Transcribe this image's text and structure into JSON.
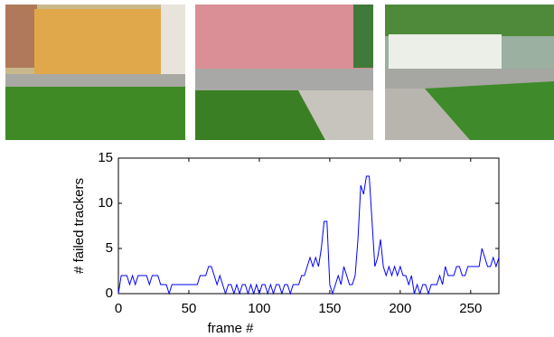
{
  "chart_data": {
    "type": "line",
    "xlabel": "frame #",
    "ylabel": "# failed trackers",
    "xlim": [
      0,
      270
    ],
    "ylim": [
      0,
      15
    ],
    "xticks": [
      0,
      50,
      100,
      150,
      200,
      250
    ],
    "yticks": [
      0,
      5,
      10,
      15
    ],
    "x": [
      0,
      2,
      4,
      6,
      8,
      10,
      12,
      14,
      16,
      18,
      20,
      22,
      24,
      26,
      28,
      30,
      32,
      34,
      36,
      38,
      40,
      42,
      44,
      46,
      48,
      50,
      52,
      54,
      56,
      58,
      60,
      62,
      64,
      66,
      68,
      70,
      72,
      74,
      76,
      78,
      80,
      82,
      84,
      86,
      88,
      90,
      92,
      94,
      96,
      98,
      100,
      102,
      104,
      106,
      108,
      110,
      112,
      114,
      116,
      118,
      120,
      122,
      124,
      126,
      128,
      130,
      132,
      134,
      136,
      138,
      140,
      142,
      144,
      146,
      148,
      150,
      152,
      154,
      156,
      158,
      160,
      162,
      164,
      166,
      168,
      170,
      172,
      174,
      176,
      178,
      180,
      182,
      184,
      186,
      188,
      190,
      192,
      194,
      196,
      198,
      200,
      202,
      204,
      206,
      208,
      210,
      212,
      214,
      216,
      218,
      220,
      222,
      224,
      226,
      228,
      230,
      232,
      234,
      236,
      238,
      240,
      242,
      244,
      246,
      248,
      250,
      252,
      254,
      256,
      258,
      260,
      262,
      264,
      266,
      268,
      270
    ],
    "series": [
      {
        "color": "#0000ff",
        "values": [
          0,
          2,
          2,
          2,
          1,
          2,
          1,
          2,
          2,
          2,
          2,
          1,
          2,
          2,
          2,
          1,
          1,
          1,
          0,
          1,
          1,
          1,
          1,
          1,
          1,
          1,
          1,
          1,
          1,
          2,
          2,
          2,
          3,
          3,
          2,
          1,
          2,
          1,
          0,
          1,
          1,
          0,
          1,
          0,
          1,
          1,
          0,
          1,
          0,
          1,
          0,
          1,
          1,
          0,
          1,
          0,
          1,
          1,
          0,
          1,
          1,
          0,
          1,
          1,
          1,
          2,
          2,
          3,
          4,
          3,
          4,
          3,
          5,
          8,
          8,
          1,
          0,
          1,
          2,
          1,
          3,
          2,
          1,
          1,
          2,
          6,
          12,
          11,
          13,
          13,
          8,
          3,
          4,
          6,
          3,
          2,
          3,
          2,
          3,
          2,
          3,
          2,
          2,
          1,
          2,
          0,
          1,
          0,
          1,
          1,
          0,
          1,
          1,
          1,
          2,
          1,
          3,
          2,
          2,
          2,
          3,
          3,
          2,
          2,
          3,
          3,
          3,
          3,
          3,
          5,
          4,
          3,
          3,
          4,
          3,
          4
        ]
      }
    ]
  }
}
